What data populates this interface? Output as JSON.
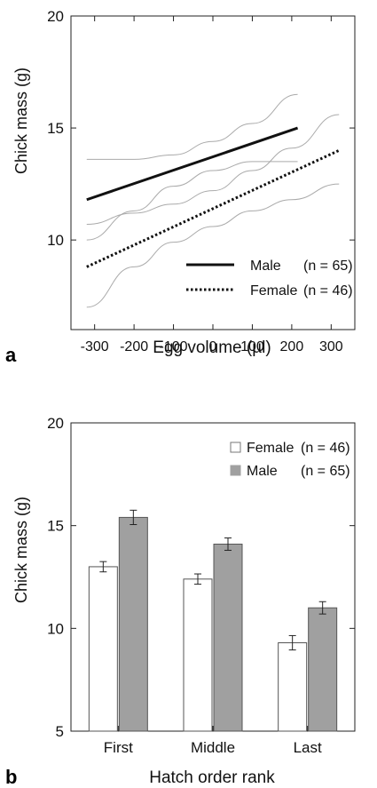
{
  "chart_data": [
    {
      "panel_label": "a",
      "type": "line",
      "xlabel": "Egg volume (µl)",
      "ylabel": "Chick mass (g)",
      "xlim": [
        -360,
        360
      ],
      "ylim": [
        6,
        20
      ],
      "xticks": [
        -300,
        -200,
        -100,
        0,
        100,
        200,
        300
      ],
      "xtick_labels": [
        "-300",
        "-200",
        "-100",
        "0",
        "100",
        "200",
        "300"
      ],
      "yticks": [
        10,
        15,
        20
      ],
      "ytick_labels": [
        "10",
        "15",
        "20"
      ],
      "grid": false,
      "legend_position": "bottom-right",
      "series": [
        {
          "name": "Male",
          "legend_n": "(n = 65)",
          "style": "solid",
          "x": [
            -320,
            215
          ],
          "y": [
            11.8,
            15.0
          ],
          "ci_upper": {
            "x": [
              -320,
              -200,
              -100,
              0,
              100,
              215
            ],
            "y": [
              13.6,
              13.6,
              13.8,
              14.4,
              15.2,
              16.5
            ]
          },
          "ci_lower": {
            "x": [
              -320,
              -200,
              -100,
              0,
              100,
              215
            ],
            "y": [
              10.0,
              11.3,
              12.4,
              13.1,
              13.5,
              13.5
            ]
          }
        },
        {
          "name": "Female",
          "legend_n": "(n = 46)",
          "style": "dotted",
          "x": [
            -320,
            320
          ],
          "y": [
            8.8,
            14.0
          ],
          "ci_upper": {
            "x": [
              -320,
              -200,
              -100,
              0,
              100,
              200,
              320
            ],
            "y": [
              10.7,
              11.2,
              11.6,
              12.2,
              13.1,
              14.1,
              15.6
            ]
          },
          "ci_lower": {
            "x": [
              -320,
              -200,
              -100,
              0,
              100,
              200,
              320
            ],
            "y": [
              7.0,
              8.8,
              9.9,
              10.6,
              11.3,
              11.8,
              12.5
            ]
          }
        }
      ]
    },
    {
      "panel_label": "b",
      "type": "bar",
      "xlabel": "Hatch order rank",
      "ylabel": "Chick mass (g)",
      "categories": [
        "First",
        "Middle",
        "Last"
      ],
      "ylim": [
        5,
        20
      ],
      "yticks": [
        5,
        10,
        15,
        20
      ],
      "ytick_labels": [
        "5",
        "10",
        "15",
        "20"
      ],
      "grid": false,
      "legend_position": "top-right",
      "series": [
        {
          "name": "Female",
          "legend_n": "(n = 46)",
          "color": "#ffffff",
          "values": [
            13.0,
            12.4,
            9.3
          ],
          "errors": [
            0.25,
            0.25,
            0.35
          ]
        },
        {
          "name": "Male",
          "legend_n": "(n = 65)",
          "color": "#a0a0a0",
          "values": [
            15.4,
            14.1,
            11.0
          ],
          "errors": [
            0.35,
            0.3,
            0.3
          ]
        }
      ]
    }
  ]
}
